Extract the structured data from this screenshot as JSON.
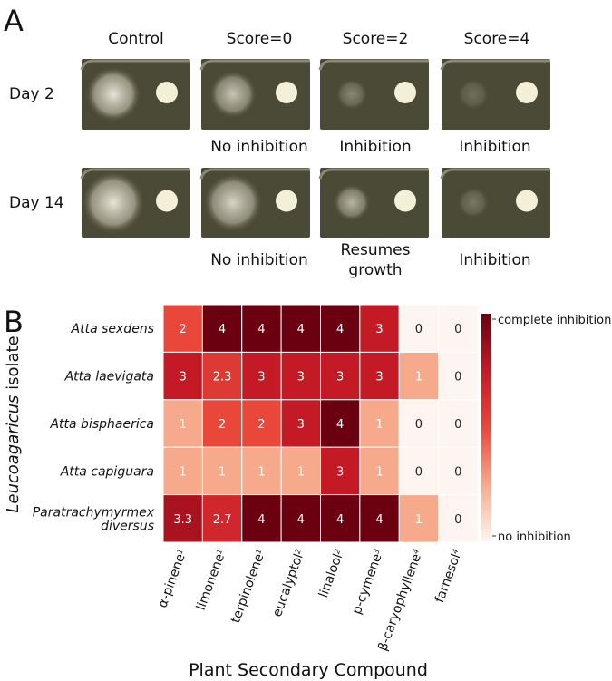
{
  "panel_a": {
    "label": "A",
    "columns": [
      "Control",
      "Score=0",
      "Score=2",
      "Score=4"
    ],
    "rows": [
      "Day 2",
      "Day 14"
    ],
    "captions_day2": [
      "No inhibition",
      "Inhibition",
      "Inhibition"
    ],
    "captions_day14": [
      [
        "No inhibition"
      ],
      [
        "Resumes",
        "growth"
      ],
      [
        "Inhibition"
      ]
    ]
  },
  "chart_data": {
    "type": "heatmap",
    "panel_label": "B",
    "xlabel": "Plant Secondary Compound",
    "ylabel": {
      "italic": "Leucoagaricus",
      "rest": "isolate"
    },
    "x_categories": [
      {
        "name": "α-pinene",
        "note": "1"
      },
      {
        "name": "limonene",
        "note": "1"
      },
      {
        "name": "terpinolene",
        "note": "1"
      },
      {
        "name": "eucalyptol",
        "note": "2"
      },
      {
        "name": "linalool",
        "note": "2"
      },
      {
        "name": "p-cymene",
        "note": "3"
      },
      {
        "name": "β-caryophyllene",
        "note": "4"
      },
      {
        "name": "farnesol",
        "note": "4"
      }
    ],
    "y_categories": [
      [
        "Atta sexdens"
      ],
      [
        "Atta laevigata"
      ],
      [
        "Atta bisphaerica"
      ],
      [
        "Atta capiguara"
      ],
      [
        "Paratrachymyrmex",
        "diversus"
      ]
    ],
    "values": [
      [
        2,
        4,
        4,
        4,
        4,
        3,
        0,
        0
      ],
      [
        3,
        2.3,
        3,
        3,
        3,
        3,
        1,
        0
      ],
      [
        1,
        2,
        2,
        3,
        4,
        1,
        0,
        0
      ],
      [
        1,
        1,
        1,
        1,
        3,
        1,
        0,
        0
      ],
      [
        3.3,
        2.7,
        4,
        4,
        4,
        4,
        1,
        0
      ]
    ],
    "colorbar_lim": [
      0,
      4
    ],
    "colorbar_ticks": [
      {
        "value": 4,
        "label": "complete inhibition"
      },
      {
        "value": 0,
        "label": "no inhibition"
      }
    ],
    "colors": [
      "#fff5f0",
      "#f7a98c",
      "#e8473a",
      "#c41a26",
      "#6b0010"
    ]
  }
}
